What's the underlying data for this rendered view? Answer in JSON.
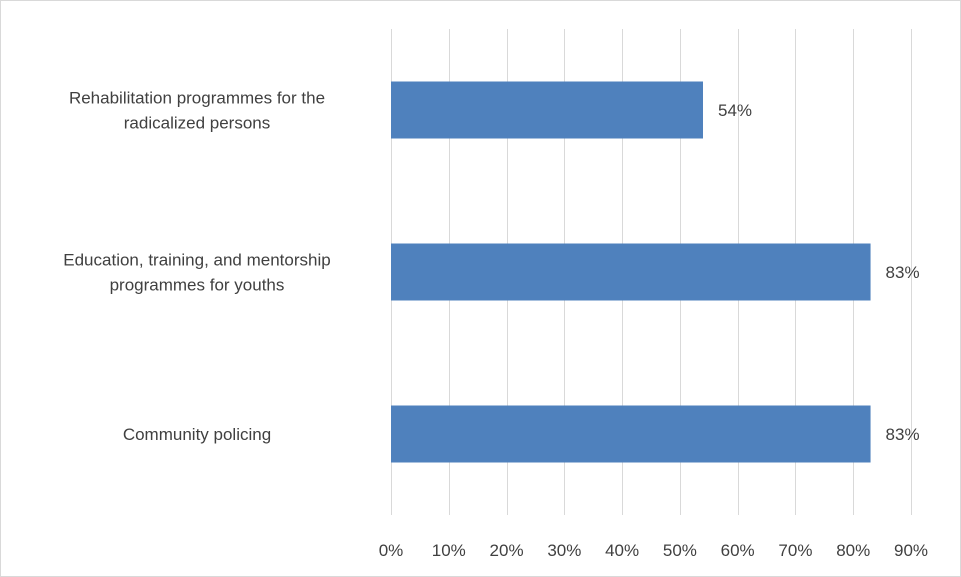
{
  "chart_data": {
    "type": "bar",
    "orientation": "horizontal",
    "categories": [
      [
        "Rehabilitation programmes for the",
        "radicalized persons"
      ],
      [
        "Education, training, and mentorship",
        "programmes for youths"
      ],
      [
        "Community policing"
      ]
    ],
    "values": [
      54,
      83,
      83
    ],
    "data_labels": [
      "54%",
      "83%",
      "83%"
    ],
    "xlim": [
      0,
      90
    ],
    "x_ticks": [
      0,
      10,
      20,
      30,
      40,
      50,
      60,
      70,
      80,
      90
    ],
    "x_tick_labels": [
      "0%",
      "10%",
      "20%",
      "30%",
      "40%",
      "50%",
      "60%",
      "70%",
      "80%",
      "90%"
    ],
    "title": "",
    "xlabel": "",
    "ylabel": "",
    "grid": "vertical",
    "legend": "none",
    "bar_color": "#4f81bd"
  }
}
